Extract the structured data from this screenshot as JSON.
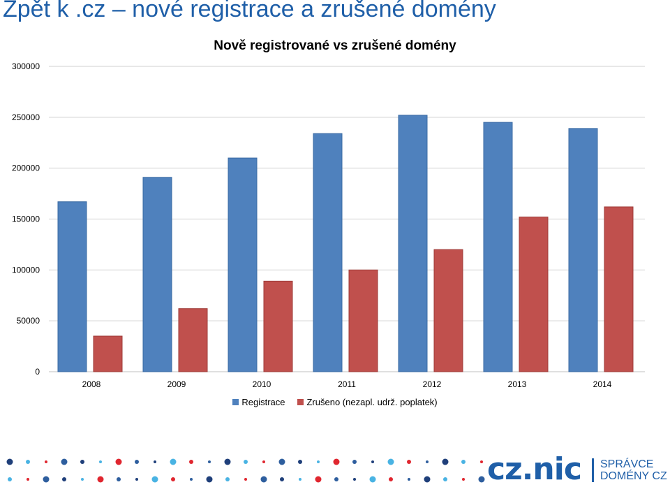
{
  "slide": {
    "title": "Zpět k .cz – nové registrace a zrušené domény"
  },
  "chart_data": {
    "type": "bar",
    "title": "Nově registrované vs zrušené domény",
    "categories": [
      "2008",
      "2009",
      "2010",
      "2011",
      "2012",
      "2013",
      "2014"
    ],
    "series": [
      {
        "name": "Registrace",
        "color": "#4f81bd",
        "values": [
          167000,
          191000,
          210000,
          234000,
          252000,
          245000,
          239000
        ]
      },
      {
        "name": "Zrušeno (nezapl. udrž. poplatek)",
        "color": "#c0504d",
        "values": [
          35000,
          62000,
          89000,
          100000,
          120000,
          152000,
          162000
        ]
      }
    ],
    "ylim": [
      0,
      300000
    ],
    "yticks": [
      0,
      50000,
      100000,
      150000,
      200000,
      250000,
      300000
    ],
    "grid": true,
    "legend_position": "bottom"
  },
  "logo": {
    "main": "cz.nic",
    "line1": "SPRÁVCE",
    "line2": "DOMÉNY CZ",
    "color": "#1f5fa8",
    "accent": "#e0262f"
  },
  "decor": {
    "dot_colors": [
      "#1f3f7a",
      "#2e5e9e",
      "#e0262f",
      "#49b3e3"
    ]
  }
}
